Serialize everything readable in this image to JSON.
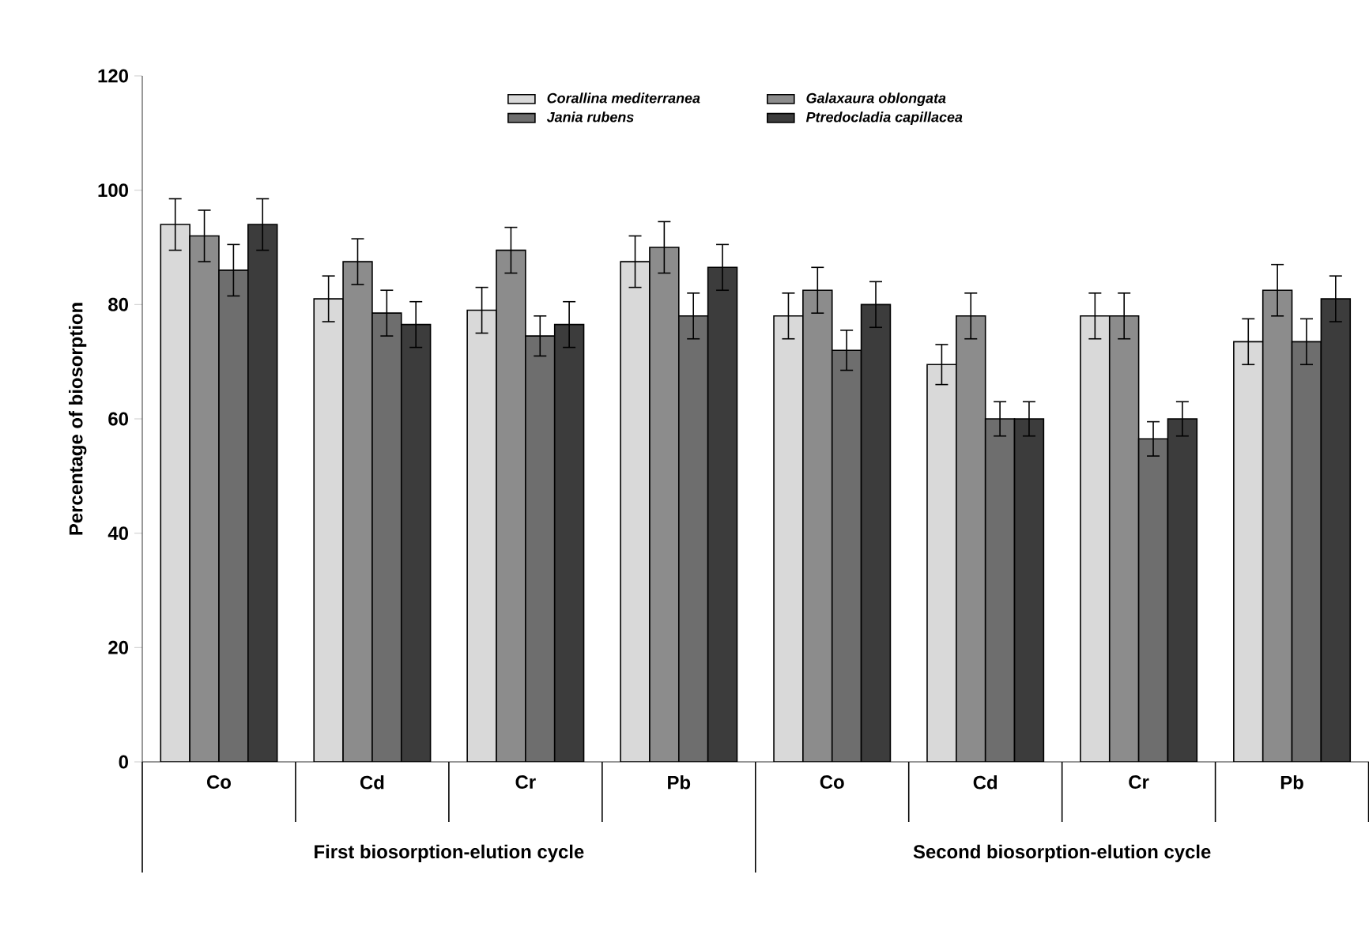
{
  "chart_data": {
    "type": "bar",
    "ylabel": "Percentage of biosorption",
    "categories": [
      "Co",
      "Cd",
      "Cr",
      "Pb",
      "Co",
      "Cd",
      "Cr",
      "Pb"
    ],
    "series": [
      {
        "name": "*Corallina mediterranea*",
        "color": "#d9d9d9",
        "values": [
          94,
          81,
          79,
          87.5,
          78,
          69.5,
          78,
          73.5
        ],
        "errors": [
          4.5,
          4,
          4,
          4.5,
          4,
          3.5,
          4,
          4
        ]
      },
      {
        "name": "*Galaxaura oblongata*",
        "color": "#8c8c8c",
        "values": [
          92,
          87.5,
          89.5,
          90,
          82.5,
          78,
          78,
          82.5
        ],
        "errors": [
          4.5,
          4,
          4,
          4.5,
          4,
          4,
          4,
          4.5
        ]
      },
      {
        "name": "*Jania rubens*",
        "color": "#6e6e6e",
        "values": [
          86,
          78.5,
          74.5,
          78,
          72,
          60,
          56.5,
          73.5
        ],
        "errors": [
          4.5,
          4,
          3.5,
          4,
          3.5,
          3,
          3,
          4
        ]
      },
      {
        "name": "*Ptredocladia capillacea*",
        "color": "#3c3c3c",
        "values": [
          94,
          76.5,
          76.5,
          86.5,
          80,
          60,
          60,
          81
        ],
        "errors": [
          4.5,
          4,
          4,
          4,
          4,
          3,
          3,
          4
        ]
      }
    ],
    "ylim": [
      0,
      120
    ],
    "yticks": [
      0,
      20,
      40,
      60,
      80,
      100,
      120
    ],
    "grid": false,
    "legend": "top",
    "annotations": [
      "First biosorption-elution cycle",
      "Second biosorption-elution cycle"
    ]
  }
}
